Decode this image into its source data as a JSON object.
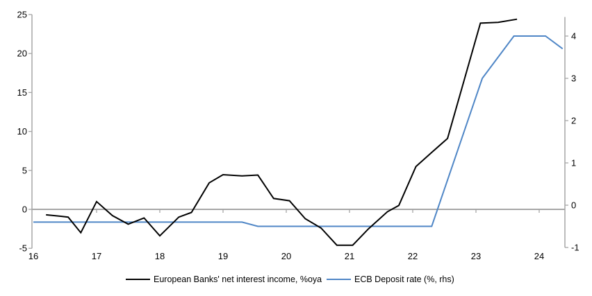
{
  "legend": {
    "items": [
      {
        "label": "European Banks' net interest income, %oya",
        "color": "#000000"
      },
      {
        "label": "ECB Deposit rate (%, rhs)",
        "color": "#4f86c6"
      }
    ]
  },
  "chart_data": {
    "type": "line",
    "title": "",
    "xlabel": "",
    "ylabel_left": "",
    "ylabel_right": "",
    "grid": false,
    "zero_line": true,
    "legend_position": "bottom-center",
    "x_axis": {
      "labels": [
        "16",
        "17",
        "18",
        "19",
        "20",
        "21",
        "22",
        "23",
        "24"
      ],
      "years": [
        16,
        17,
        18,
        19,
        20,
        21,
        22,
        23,
        24
      ],
      "range": [
        16,
        24.42
      ],
      "year_ticks_on_zero_line": [
        17,
        18,
        19,
        20,
        21,
        22,
        23,
        24
      ]
    },
    "left_axis": {
      "ticks": [
        25,
        20,
        15,
        10,
        5,
        0,
        -5
      ],
      "range": [
        -5,
        25
      ]
    },
    "right_axis": {
      "ticks": [
        4,
        3,
        2,
        1,
        0,
        -1
      ],
      "range": [
        -1,
        4.45
      ]
    },
    "series": [
      {
        "name": "European Banks' net interest income, %oya",
        "axis": "left",
        "color": "#000000",
        "width": 2,
        "points": [
          [
            16.2,
            -0.7
          ],
          [
            16.45,
            -0.9
          ],
          [
            16.55,
            -1.0
          ],
          [
            16.75,
            -3.0
          ],
          [
            17.0,
            1.0
          ],
          [
            17.25,
            -0.8
          ],
          [
            17.5,
            -1.9
          ],
          [
            17.75,
            -1.1
          ],
          [
            18.0,
            -3.4
          ],
          [
            18.3,
            -1.0
          ],
          [
            18.5,
            -0.4
          ],
          [
            18.78,
            3.4
          ],
          [
            19.0,
            4.45
          ],
          [
            19.3,
            4.3
          ],
          [
            19.55,
            4.4
          ],
          [
            19.8,
            1.4
          ],
          [
            20.05,
            1.1
          ],
          [
            20.3,
            -1.2
          ],
          [
            20.55,
            -2.4
          ],
          [
            20.8,
            -4.6
          ],
          [
            21.05,
            -4.6
          ],
          [
            21.3,
            -2.5
          ],
          [
            21.6,
            -0.3
          ],
          [
            21.78,
            0.5
          ],
          [
            22.05,
            5.5
          ],
          [
            22.3,
            7.3
          ],
          [
            22.55,
            9.1
          ],
          [
            23.07,
            23.9
          ],
          [
            23.35,
            24.0
          ],
          [
            23.65,
            24.4
          ]
        ]
      },
      {
        "name": "ECB Deposit rate (%, rhs)",
        "axis": "right",
        "color": "#4f86c6",
        "width": 2,
        "points": [
          [
            16.0,
            -0.4
          ],
          [
            19.3,
            -0.4
          ],
          [
            19.55,
            -0.5
          ],
          [
            22.3,
            -0.5
          ],
          [
            23.1,
            3.0
          ],
          [
            23.6,
            4.0
          ],
          [
            24.1,
            4.0
          ],
          [
            24.37,
            3.7
          ]
        ]
      }
    ],
    "colors": {
      "axis": "#a6a6a6",
      "zero_line": "#a6a6a6",
      "text": "#000000",
      "background": "#ffffff"
    }
  }
}
